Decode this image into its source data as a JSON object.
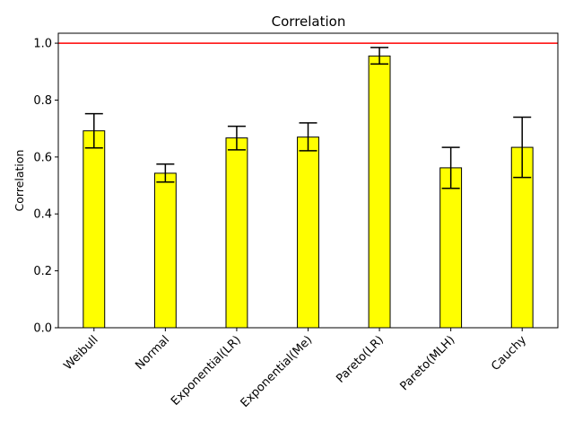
{
  "chart_data": {
    "type": "bar",
    "title": "Correlation",
    "xlabel": "",
    "ylabel": "Correlation",
    "categories": [
      "Weibull",
      "Normal",
      "Exponential(LR)",
      "Exponential(Me)",
      "Pareto(LR)",
      "Pareto(MLH)",
      "Cauchy"
    ],
    "values": [
      0.692,
      0.543,
      0.667,
      0.67,
      0.955,
      0.562,
      0.634
    ],
    "error_low": [
      0.632,
      0.512,
      0.625,
      0.622,
      0.927,
      0.49,
      0.528
    ],
    "error_high": [
      0.752,
      0.575,
      0.708,
      0.72,
      0.985,
      0.634,
      0.74
    ],
    "ylim": [
      0,
      1.035
    ],
    "yticks": [
      "0.0",
      "0.2",
      "0.4",
      "0.6",
      "0.8",
      "1.0"
    ],
    "reference_line": {
      "value": 1.0,
      "color": "#ff0000"
    },
    "bar_color": "#ffff00",
    "bar_edge_color": "#000000",
    "grid": false,
    "x_tick_rotation": 45
  }
}
